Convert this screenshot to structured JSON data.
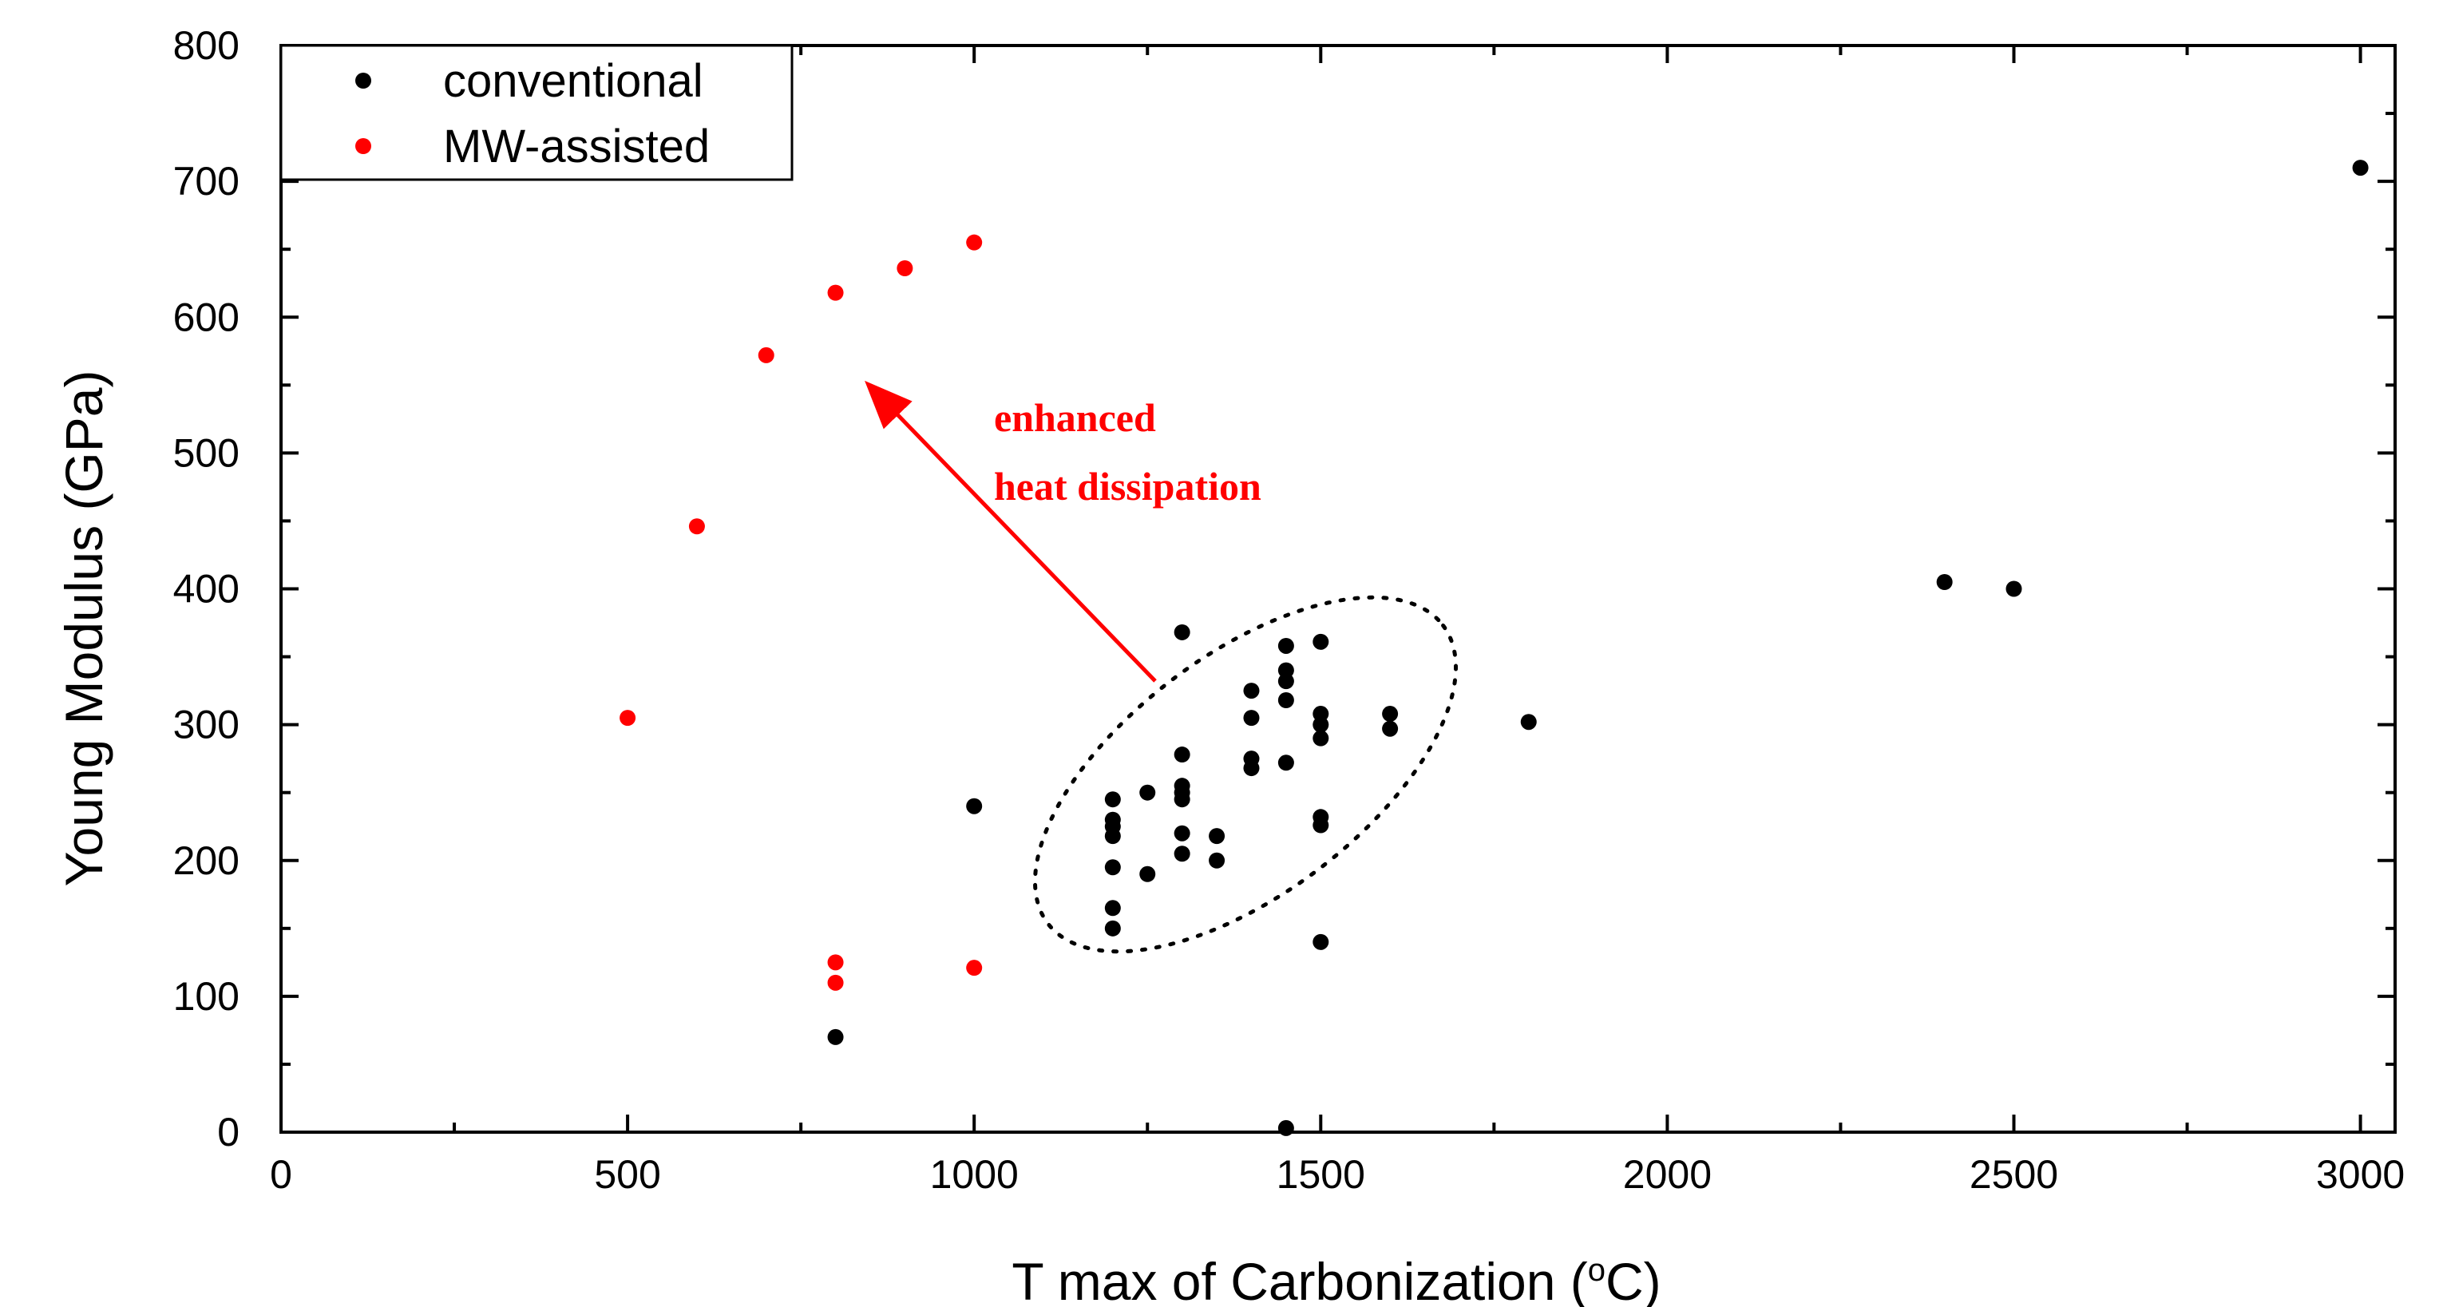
{
  "chart_data": {
    "type": "scatter",
    "xlabel_main": "T max of Carbonization (",
    "xlabel_sup": "o",
    "xlabel_end": "C)",
    "ylabel": "Young Modulus (GPa)",
    "xlim": [
      0,
      3050
    ],
    "ylim": [
      0,
      800
    ],
    "xticks": [
      0,
      500,
      1000,
      1500,
      2000,
      2500,
      3000
    ],
    "yticks": [
      0,
      100,
      200,
      300,
      400,
      500,
      600,
      700,
      800
    ],
    "legend_position": "top-left",
    "series": [
      {
        "name": "conventional",
        "color": "#000000",
        "points": [
          [
            800,
            70
          ],
          [
            1000,
            240
          ],
          [
            1200,
            245
          ],
          [
            1200,
            230
          ],
          [
            1200,
            225
          ],
          [
            1200,
            218
          ],
          [
            1200,
            195
          ],
          [
            1200,
            165
          ],
          [
            1200,
            150
          ],
          [
            1250,
            250
          ],
          [
            1250,
            190
          ],
          [
            1300,
            368
          ],
          [
            1300,
            278
          ],
          [
            1300,
            255
          ],
          [
            1300,
            250
          ],
          [
            1300,
            245
          ],
          [
            1300,
            220
          ],
          [
            1300,
            205
          ],
          [
            1350,
            218
          ],
          [
            1350,
            200
          ],
          [
            1400,
            325
          ],
          [
            1400,
            305
          ],
          [
            1400,
            275
          ],
          [
            1400,
            268
          ],
          [
            1450,
            358
          ],
          [
            1450,
            340
          ],
          [
            1450,
            332
          ],
          [
            1450,
            318
          ],
          [
            1450,
            272
          ],
          [
            1450,
            3
          ],
          [
            1500,
            361
          ],
          [
            1500,
            308
          ],
          [
            1500,
            300
          ],
          [
            1500,
            290
          ],
          [
            1500,
            232
          ],
          [
            1500,
            226
          ],
          [
            1500,
            140
          ],
          [
            1600,
            308
          ],
          [
            1600,
            297
          ],
          [
            1800,
            302
          ],
          [
            2400,
            405
          ],
          [
            2500,
            400
          ],
          [
            3000,
            710
          ]
        ]
      },
      {
        "name": "MW-assisted",
        "color": "#ff0000",
        "points": [
          [
            500,
            305
          ],
          [
            600,
            446
          ],
          [
            700,
            572
          ],
          [
            800,
            618
          ],
          [
            900,
            636
          ],
          [
            1000,
            655
          ],
          [
            800,
            125
          ],
          [
            800,
            110
          ],
          [
            1000,
            121
          ]
        ]
      }
    ],
    "annotation": {
      "lines": [
        "enhanced",
        "heat dissipation"
      ],
      "color": "#ff0000"
    }
  }
}
